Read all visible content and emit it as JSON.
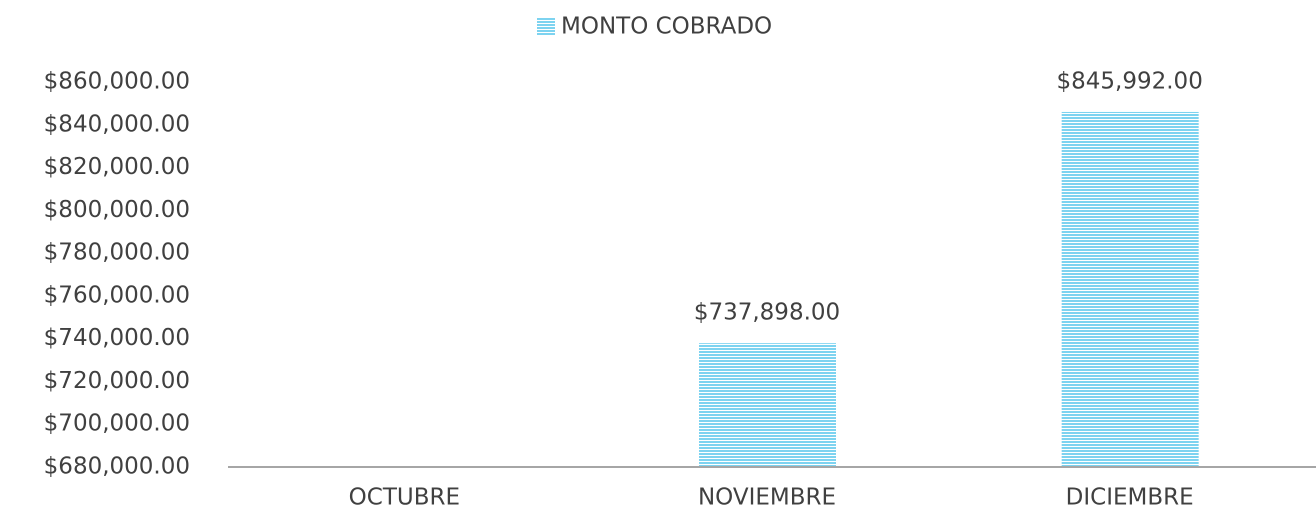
{
  "chart_data": {
    "type": "bar",
    "legend": "MONTO COBRADO",
    "categories": [
      "OCTUBRE",
      "NOVIEMBRE",
      "DICIEMBRE"
    ],
    "values": [
      null,
      737898,
      845992
    ],
    "value_labels": [
      null,
      "$737,898.00",
      "$845,992.00"
    ],
    "color": "#7dd3f0",
    "ylim": [
      680000,
      860000
    ],
    "yticks": [
      {
        "value": 680000,
        "label": "$680,000.00"
      },
      {
        "value": 700000,
        "label": "$700,000.00"
      },
      {
        "value": 720000,
        "label": "$720,000.00"
      },
      {
        "value": 740000,
        "label": "$740,000.00"
      },
      {
        "value": 760000,
        "label": "$760,000.00"
      },
      {
        "value": 780000,
        "label": "$780,000.00"
      },
      {
        "value": 800000,
        "label": "$800,000.00"
      },
      {
        "value": 820000,
        "label": "$820,000.00"
      },
      {
        "value": 840000,
        "label": "$840,000.00"
      },
      {
        "value": 860000,
        "label": "$860,000.00"
      }
    ],
    "grid": false
  }
}
